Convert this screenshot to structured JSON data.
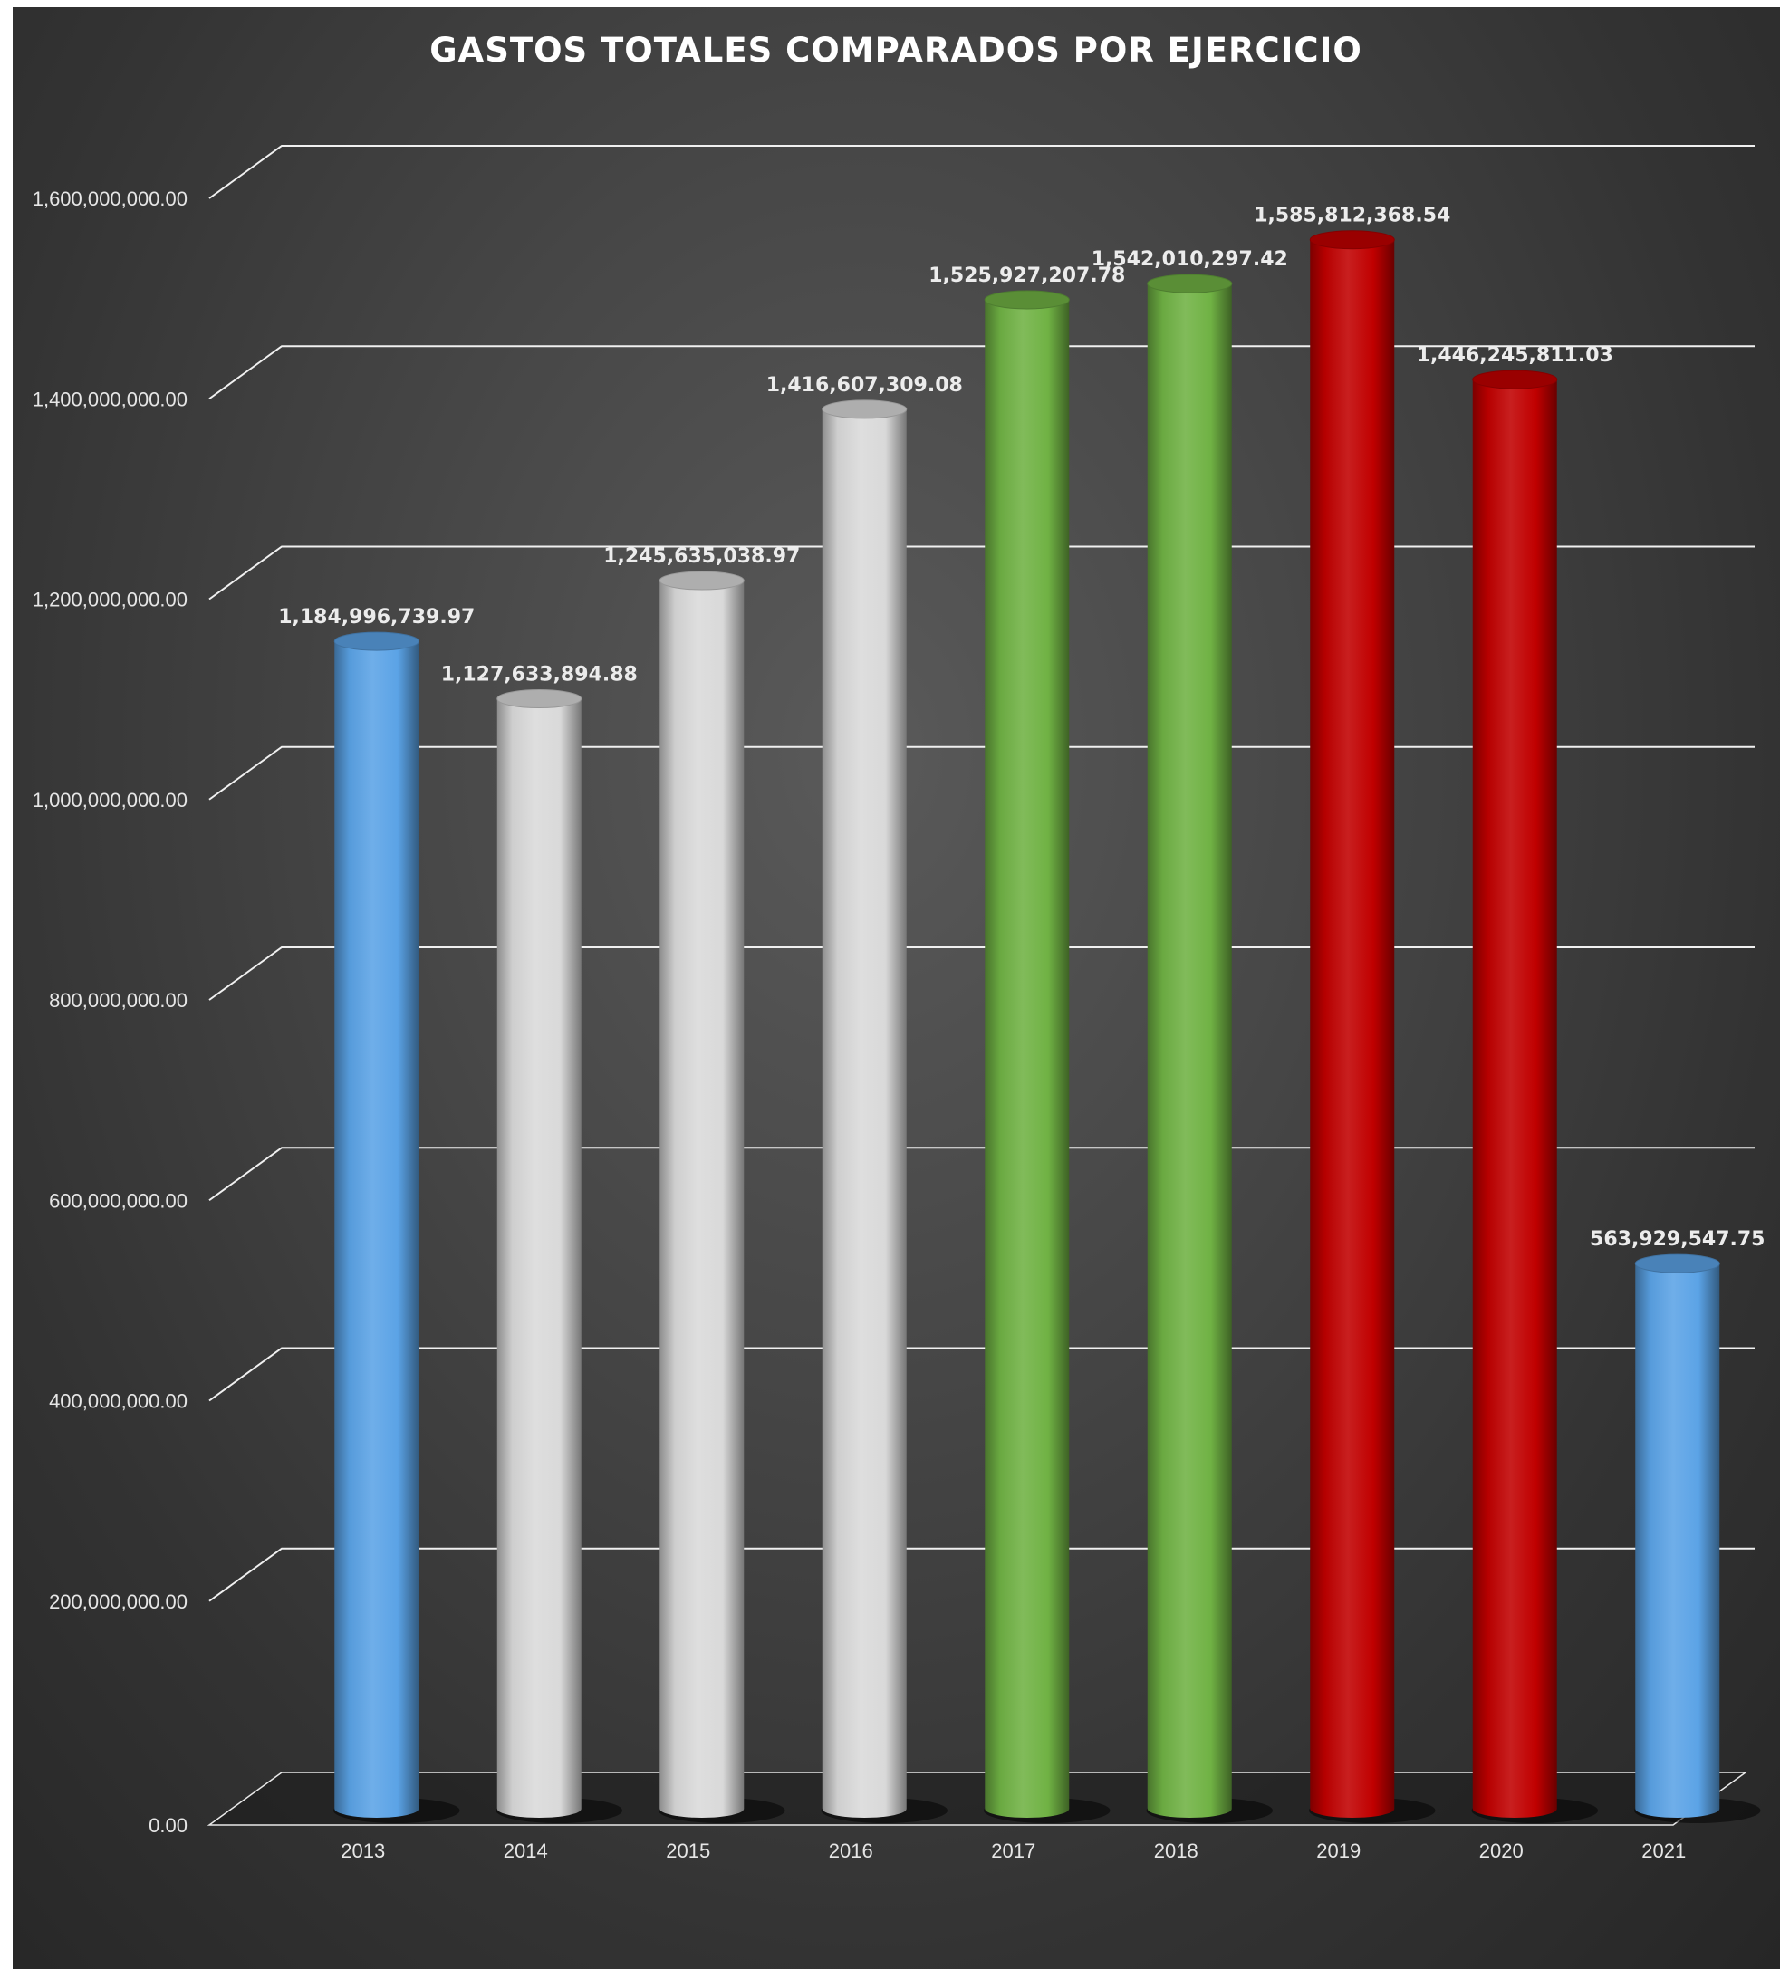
{
  "chart_data": {
    "type": "bar",
    "style": "3d-cylinder",
    "title": "GASTOS TOTALES COMPARADOS POR EJERCICIO",
    "xlabel": "",
    "ylabel": "",
    "categories": [
      "2013",
      "2014",
      "2015",
      "2016",
      "2017",
      "2018",
      "2019",
      "2020",
      "2021"
    ],
    "values": [
      1184996739.97,
      1127633894.88,
      1245635038.97,
      1416607309.08,
      1525927207.78,
      1542010297.42,
      1585812368.54,
      1446245811.03,
      563929547.75
    ],
    "data_labels": [
      "1,184,996,739.97",
      "1,127,633,894.88",
      "1,245,635,038.97",
      "1,416,607,309.08",
      "1,525,927,207.78",
      "1,542,010,297.42",
      "1,585,812,368.54",
      "1,446,245,811.03",
      "563,929,547.75"
    ],
    "bar_colors": [
      "#5ba3e6",
      "#d9d9d9",
      "#d9d9d9",
      "#d9d9d9",
      "#70b244",
      "#70b244",
      "#c00000",
      "#c00000",
      "#5ba3e6"
    ],
    "ylim": [
      0,
      1600000000
    ],
    "yticks": [
      0,
      200000000,
      400000000,
      600000000,
      800000000,
      1000000000,
      1200000000,
      1400000000,
      1600000000
    ],
    "ytick_labels": [
      "0.00",
      "200,000,000.00",
      "400,000,000.00",
      "600,000,000.00",
      "800,000,000.00",
      "1,000,000,000.00",
      "1,200,000,000.00",
      "1,400,000,000.00",
      "1,600,000,000.00"
    ],
    "grid": true,
    "legend": "none",
    "background": "#3c3c3c",
    "gridline_color": "#ffffff"
  }
}
